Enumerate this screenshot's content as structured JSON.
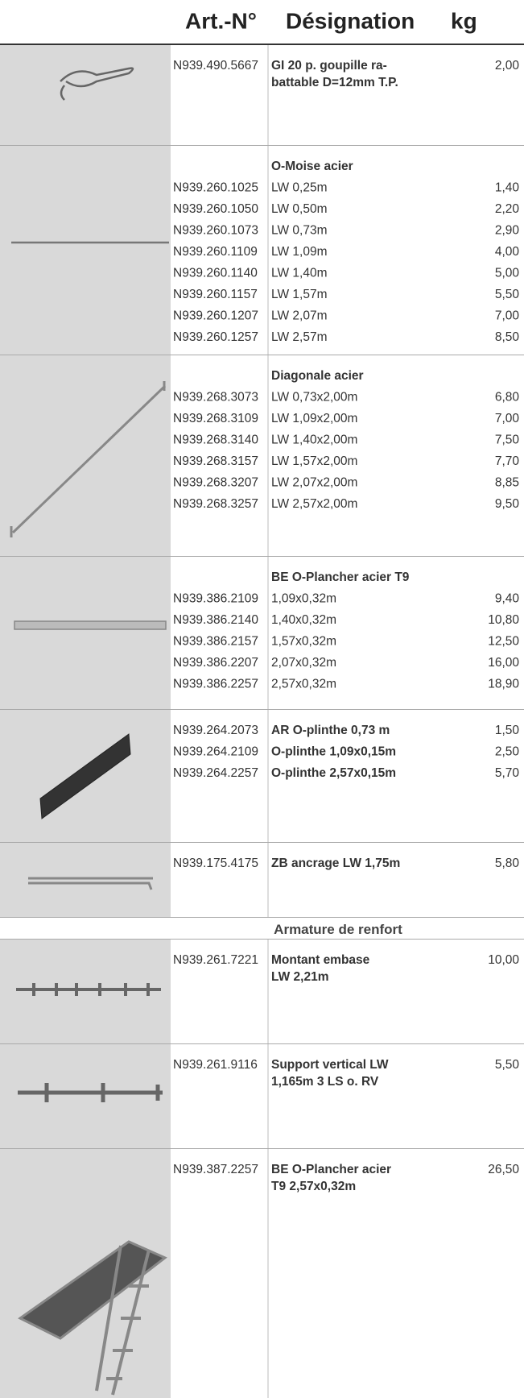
{
  "header": {
    "columns": [
      "Art.-N°",
      "Désignation",
      "kg"
    ]
  },
  "blocks": [
    {
      "items": [
        {
          "art": "N939.490.5667",
          "designation": [
            "GI 20 p. goupille ra-",
            "battable D=12mm T.P."
          ],
          "kg": "2,00"
        }
      ]
    },
    {
      "title": "O-Moise acier",
      "items": [
        {
          "art": "N939.260.1025",
          "designation": [
            "LW 0,25m"
          ],
          "kg": "1,40"
        },
        {
          "art": "N939.260.1050",
          "designation": [
            "LW 0,50m"
          ],
          "kg": "2,20"
        },
        {
          "art": "N939.260.1073",
          "designation": [
            "LW 0,73m"
          ],
          "kg": "2,90"
        },
        {
          "art": "N939.260.1109",
          "designation": [
            "LW 1,09m"
          ],
          "kg": "4,00"
        },
        {
          "art": "N939.260.1140",
          "designation": [
            "LW 1,40m"
          ],
          "kg": "5,00"
        },
        {
          "art": "N939.260.1157",
          "designation": [
            "LW 1,57m"
          ],
          "kg": "5,50"
        },
        {
          "art": "N939.260.1207",
          "designation": [
            "LW 2,07m"
          ],
          "kg": "7,00"
        },
        {
          "art": "N939.260.1257",
          "designation": [
            "LW 2,57m"
          ],
          "kg": "8,50"
        }
      ]
    },
    {
      "title": "Diagonale acier",
      "items": [
        {
          "art": "N939.268.3073",
          "designation": [
            "LW 0,73x2,00m"
          ],
          "kg": "6,80"
        },
        {
          "art": "N939.268.3109",
          "designation": [
            "LW 1,09x2,00m"
          ],
          "kg": "7,00"
        },
        {
          "art": "N939.268.3140",
          "designation": [
            "LW 1,40x2,00m"
          ],
          "kg": "7,50"
        },
        {
          "art": "N939.268.3157",
          "designation": [
            "LW 1,57x2,00m"
          ],
          "kg": "7,70"
        },
        {
          "art": "N939.268.3207",
          "designation": [
            "LW 2,07x2,00m"
          ],
          "kg": "8,85"
        },
        {
          "art": "N939.268.3257",
          "designation": [
            "LW 2,57x2,00m"
          ],
          "kg": "9,50"
        }
      ]
    },
    {
      "title": "BE O-Plancher acier T9",
      "items": [
        {
          "art": "N939.386.2109",
          "designation": [
            "1,09x0,32m"
          ],
          "kg": "9,40"
        },
        {
          "art": "N939.386.2140",
          "designation": [
            "1,40x0,32m"
          ],
          "kg": "10,80"
        },
        {
          "art": "N939.386.2157",
          "designation": [
            "1,57x0,32m"
          ],
          "kg": "12,50"
        },
        {
          "art": "N939.386.2207",
          "designation": [
            "2,07x0,32m"
          ],
          "kg": "16,00"
        },
        {
          "art": "N939.386.2257",
          "designation": [
            "2,57x0,32m"
          ],
          "kg": "18,90"
        }
      ]
    },
    {
      "items": [
        {
          "art": "N939.264.2073",
          "designation": [
            "AR O-plinthe 0,73 m"
          ],
          "kg": "1,50"
        },
        {
          "art": "N939.264.2109",
          "designation": [
            "O-plinthe 1,09x0,15m"
          ],
          "kg": "2,50"
        },
        {
          "art": "N939.264.2257",
          "designation": [
            "O-plinthe 2,57x0,15m"
          ],
          "kg": "5,70"
        }
      ]
    },
    {
      "items": [
        {
          "art": "N939.175.4175",
          "designation": [
            "ZB ancrage LW 1,75m"
          ],
          "kg": "5,80"
        }
      ]
    },
    {
      "heading": "Armature de renfort"
    },
    {
      "items": [
        {
          "art": "N939.261.7221",
          "designation": [
            "Montant embase",
            "LW 2,21m"
          ],
          "kg": "10,00"
        }
      ]
    },
    {
      "items": [
        {
          "art": "N939.261.9116",
          "designation": [
            "Support vertical LW",
            "1,165m 3 LS o. RV"
          ],
          "kg": "5,50"
        }
      ]
    },
    {
      "items": [
        {
          "art": "N939.387.2257",
          "designation": [
            "BE O-Plancher acier",
            "T9 2,57x0,32m"
          ],
          "kg": "26,50"
        }
      ]
    }
  ]
}
